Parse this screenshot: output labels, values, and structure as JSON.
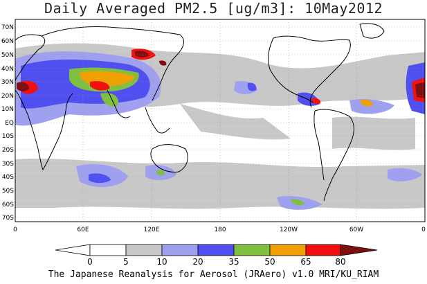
{
  "title": "Daily Averaged PM2.5 [ug/m3]: 10May2012",
  "credit": "The Japanese Reanalysis for Aerosol (JRAero) v1.0 MRI/KU_RIAM",
  "lat_labels": [
    "70N",
    "60N",
    "50N",
    "40N",
    "30N",
    "20N",
    "10N",
    "EQ",
    "10S",
    "20S",
    "30S",
    "40S",
    "50S",
    "60S",
    "70S"
  ],
  "lon_labels": [
    "0",
    "60E",
    "120E",
    "180",
    "120W",
    "60W",
    "0"
  ],
  "colorbar": {
    "ticks": [
      "0",
      "5",
      "10",
      "20",
      "35",
      "50",
      "65",
      "80"
    ],
    "colors": [
      "#ffffff",
      "#c8c8c8",
      "#a0a0f0",
      "#5050f0",
      "#80c040",
      "#f0a000",
      "#f01010",
      "#801010"
    ]
  }
}
